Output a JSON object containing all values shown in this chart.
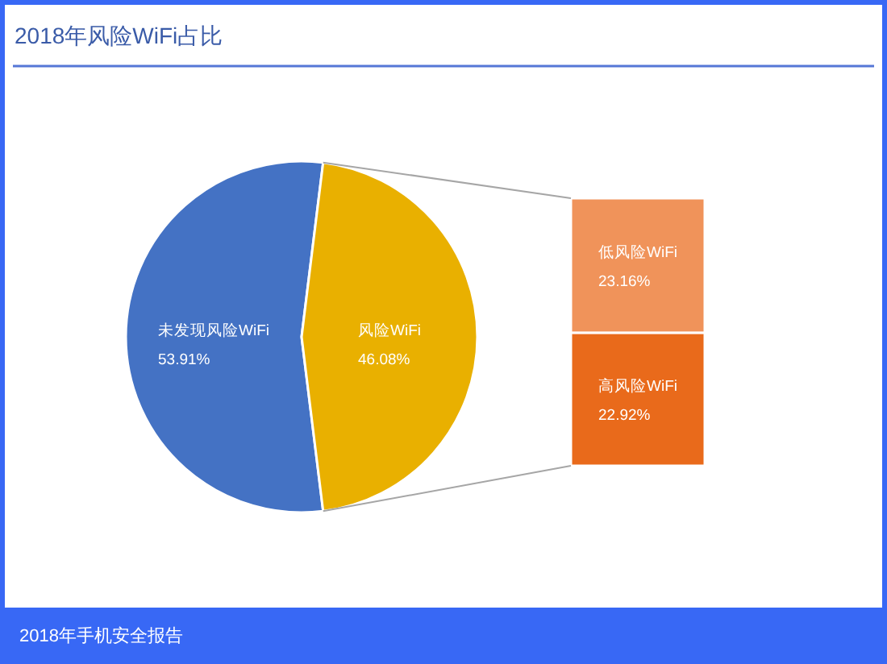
{
  "chart_data": [
    {
      "type": "pie",
      "title": "2018年风险WiFi占比",
      "categories": [
        "未发现风险WiFi",
        "风险WiFi"
      ],
      "values": [
        53.91,
        46.08
      ],
      "colors": [
        "#4472c4",
        "#e9b000"
      ],
      "value_labels": [
        "53.91%",
        "46.08%"
      ],
      "annotations": [
        "2018年手机安全报告"
      ]
    },
    {
      "type": "bar",
      "stacked": true,
      "categories": [
        null
      ],
      "series": [
        {
          "name": "高风险WiFi",
          "color": "#e96a1b",
          "values": [
            22.92
          ],
          "value_labels": [
            "22.92%"
          ]
        },
        {
          "name": "低风险WiFi",
          "color": "#f0935a",
          "values": [
            23.16
          ],
          "value_labels": [
            "23.16%"
          ]
        }
      ]
    }
  ]
}
